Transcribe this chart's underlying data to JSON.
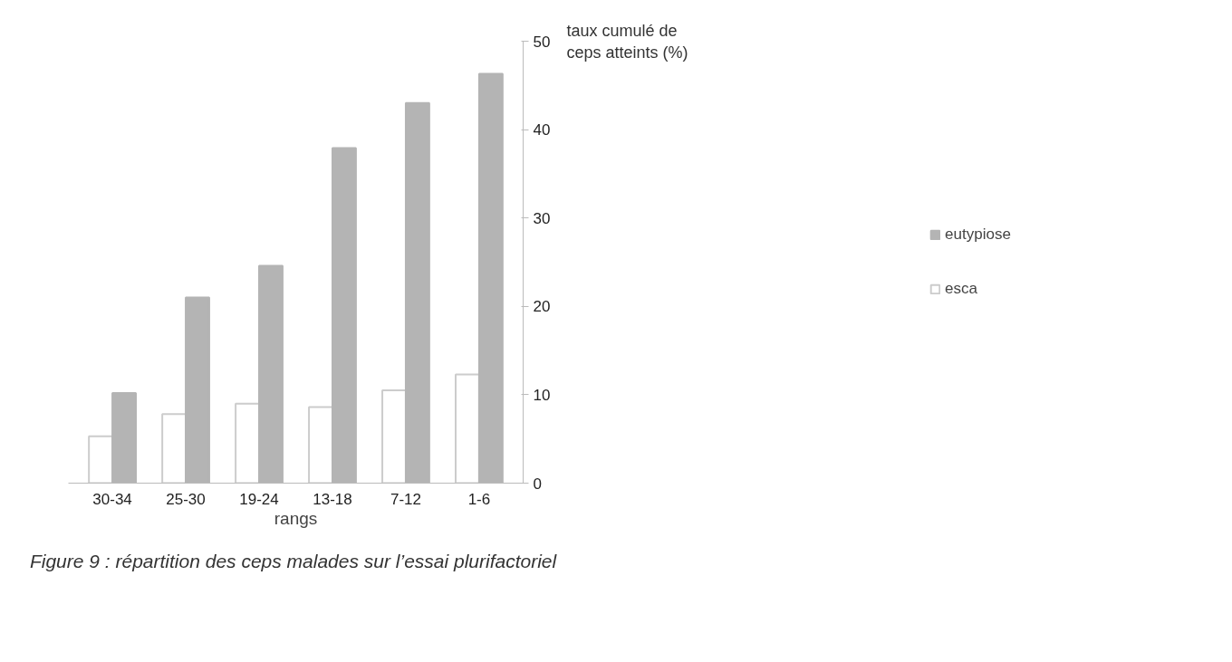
{
  "chart_data": {
    "type": "bar",
    "xlabel": "rangs",
    "ylabel": "taux cumulé de ceps atteints (%)",
    "categories": [
      "30-34",
      "25-30",
      "19-24",
      "13-18",
      "7-12",
      "1-6"
    ],
    "series": [
      {
        "name": "esca",
        "color": "#ffffff",
        "values": [
          5.3,
          7.8,
          9.0,
          8.6,
          10.5,
          12.3
        ]
      },
      {
        "name": "eutypiose",
        "color": "#b4b4b4",
        "values": [
          10.2,
          21.0,
          24.6,
          37.9,
          43.0,
          46.3
        ]
      }
    ],
    "ylim": [
      0,
      50
    ],
    "yticks": [
      0,
      10,
      20,
      30,
      40,
      50
    ],
    "grid": false,
    "legend": "right",
    "annotations": [
      "Figure 9  : répartition des ceps malades sur l’essai plurifactoriel"
    ]
  }
}
